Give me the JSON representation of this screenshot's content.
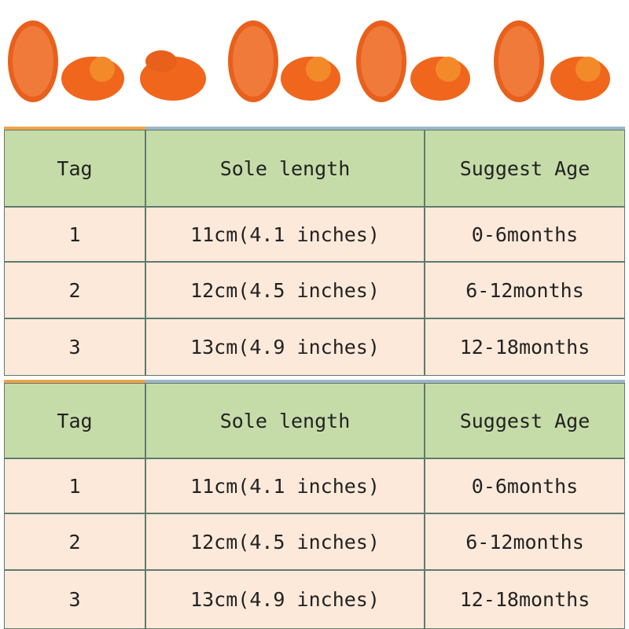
{
  "tables": [
    {
      "header": [
        "Tag",
        "Sole length",
        "Suggest Age"
      ],
      "rows": [
        [
          "1",
          "11cm(4.1 inches)",
          "0-6months"
        ],
        [
          "2",
          "12cm(4.5 inches)",
          "6-12months"
        ],
        [
          "3",
          "13cm(4.9 inches)",
          "12-18months"
        ]
      ]
    },
    {
      "header": [
        "Tag",
        "Sole length",
        "Suggest Age"
      ],
      "rows": [
        [
          "1",
          "11cm(4.1 inches)",
          "0-6months"
        ],
        [
          "2",
          "12cm(4.5 inches)",
          "6-12months"
        ],
        [
          "3",
          "13cm(4.9 inches)",
          "12-18months"
        ]
      ]
    }
  ]
}
